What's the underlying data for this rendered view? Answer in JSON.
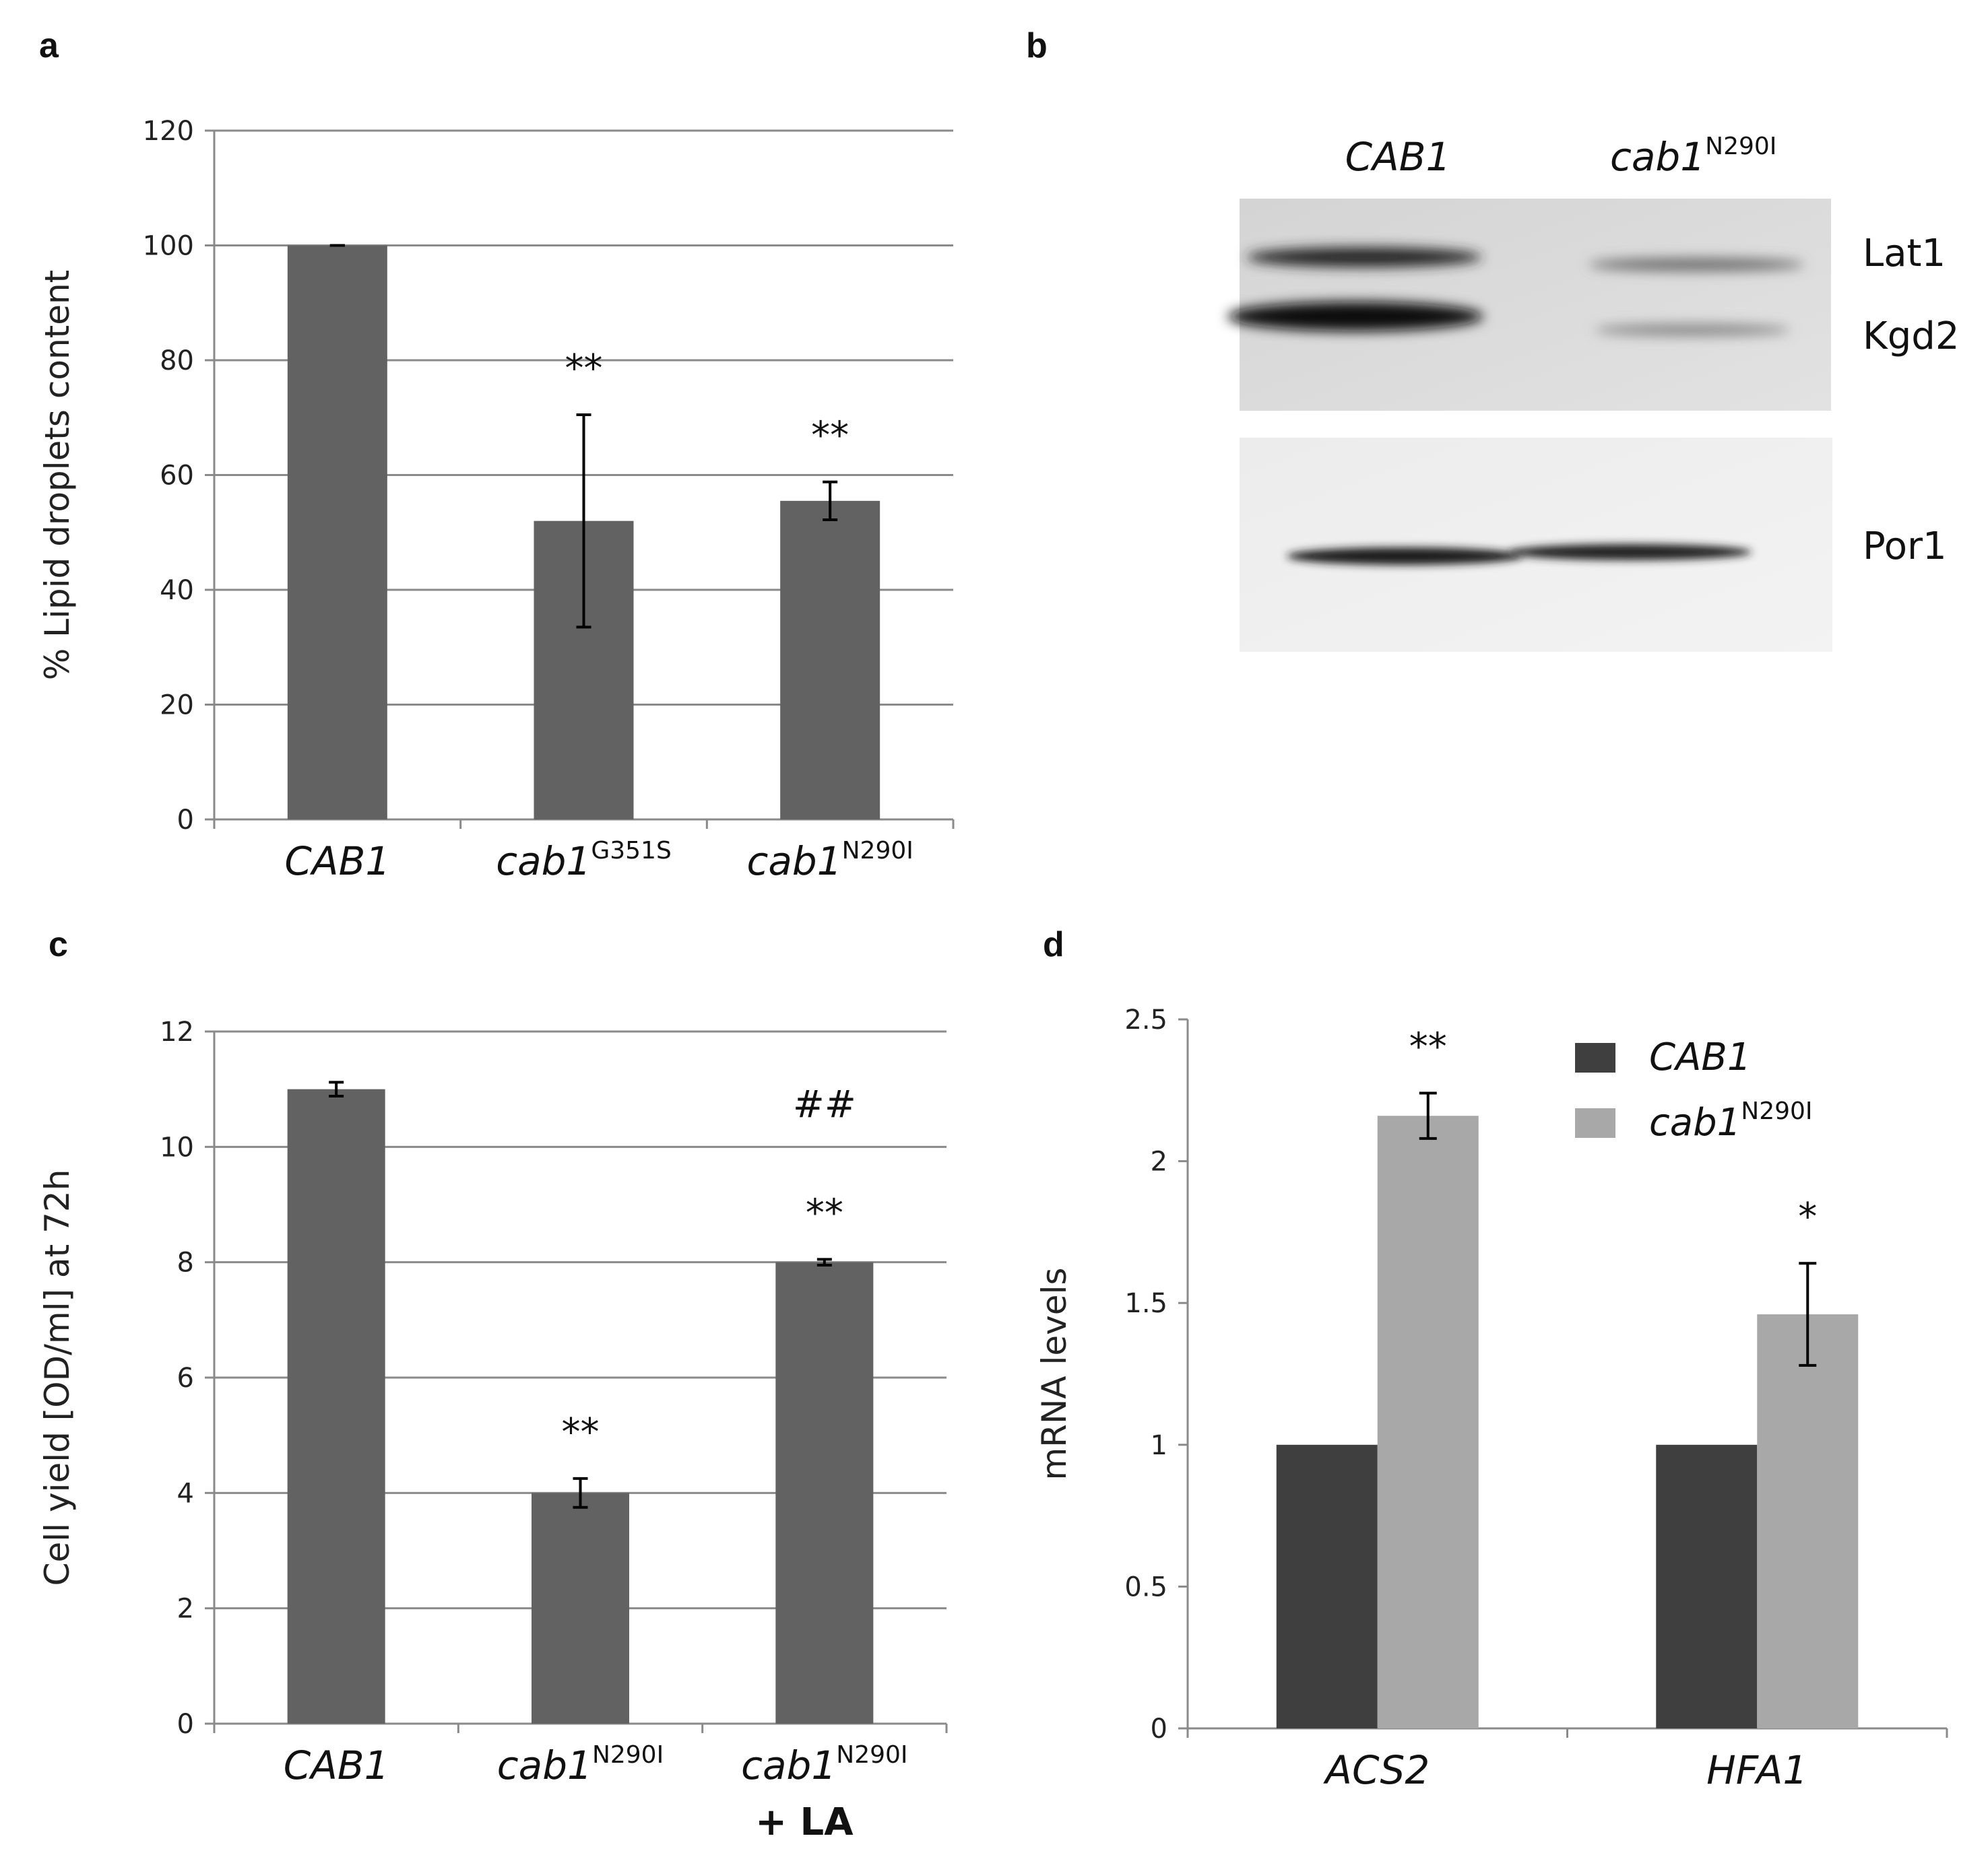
{
  "panels": {
    "a": {
      "letter": "a"
    },
    "b": {
      "letter": "b"
    },
    "c": {
      "letter": "c"
    },
    "d": {
      "letter": "d"
    }
  },
  "chart_data": [
    {
      "panel": "a",
      "type": "bar",
      "ylabel": "% Lipid droplets content",
      "ylim": [
        0,
        120
      ],
      "yticks": [
        0,
        20,
        40,
        60,
        80,
        100,
        120
      ],
      "grid": true,
      "categories": [
        {
          "base": "CAB1",
          "sup": ""
        },
        {
          "base": "cab1",
          "sup": "G351S"
        },
        {
          "base": "cab1",
          "sup": "N290I"
        }
      ],
      "values": [
        100,
        52,
        55.5
      ],
      "errors": [
        0,
        18.5,
        3.3
      ],
      "significance": [
        "",
        "**",
        "**"
      ],
      "bar_color": "#626262"
    },
    {
      "panel": "c",
      "type": "bar",
      "ylabel": "Cell yield [OD/ml] at 72h",
      "ylim": [
        0,
        12
      ],
      "yticks": [
        0,
        2,
        4,
        6,
        8,
        10,
        12
      ],
      "grid": true,
      "categories": [
        {
          "base": "CAB1",
          "sup": "",
          "extra": ""
        },
        {
          "base": "cab1",
          "sup": "N290I",
          "extra": ""
        },
        {
          "base": "cab1",
          "sup": "N290I",
          "extra": "+ LA"
        }
      ],
      "values": [
        11,
        4,
        8
      ],
      "errors": [
        0.12,
        0.25,
        0.05
      ],
      "significance": [
        "",
        "**",
        "**"
      ],
      "extra_marks": [
        "",
        "",
        "##"
      ],
      "bar_color": "#626262"
    },
    {
      "panel": "d",
      "type": "bar",
      "ylabel": "mRNA levels",
      "ylim": [
        0,
        2.5
      ],
      "yticks": [
        "0",
        "0.5",
        "1",
        "1.5",
        "2",
        "2.5"
      ],
      "grid": false,
      "legend_position": "top-right",
      "categories": [
        "ACS2",
        "HFA1"
      ],
      "series": [
        {
          "name": "CAB1",
          "sup": "",
          "color": "#3f3f3f",
          "values": [
            1,
            1
          ],
          "errors": [
            0,
            0
          ],
          "significance": [
            "",
            ""
          ]
        },
        {
          "name": "cab1",
          "sup": "N290I",
          "color": "#a8a8a8",
          "values": [
            2.16,
            1.46
          ],
          "errors": [
            0.08,
            0.18
          ],
          "significance": [
            "**",
            "*"
          ]
        }
      ]
    }
  ],
  "blot": {
    "lanes": [
      {
        "base": "CAB1",
        "sup": ""
      },
      {
        "base": "cab1",
        "sup": "N290I"
      }
    ],
    "bands_top": [
      "Lat1",
      "Kgd2"
    ],
    "bands_bottom": [
      "Por1"
    ]
  }
}
